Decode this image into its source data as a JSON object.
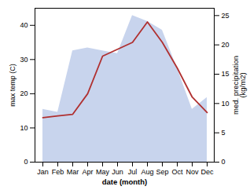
{
  "chart_data": {
    "type": "line",
    "categories": [
      "Jan",
      "Feb",
      "Mar",
      "Apr",
      "May",
      "Jun",
      "Jul",
      "Aug",
      "Sep",
      "Oct",
      "Nov",
      "Dec"
    ],
    "xlabel": "date (month)",
    "ylabel": "max temp (C)",
    "y2label": "med. precipitation\n(kg/m2)",
    "ylim": [
      0,
      45
    ],
    "yticks": [
      0,
      10,
      20,
      30,
      40
    ],
    "y2lim": [
      0,
      26.25
    ],
    "y2ticks": [
      0,
      5,
      10,
      15,
      20,
      25
    ],
    "series": [
      {
        "type": "area",
        "axis": "y2",
        "color": "#c8d4ed",
        "values": [
          9.0,
          8.5,
          19.0,
          19.5,
          19.0,
          18.5,
          25.0,
          24.0,
          22.5,
          16.0,
          9.0,
          11.0
        ]
      },
      {
        "type": "line",
        "color": "#b03030",
        "values": [
          13.0,
          13.5,
          14.0,
          20.0,
          31.0,
          33.0,
          35.0,
          41.0,
          35.0,
          27.5,
          19.0,
          14.5
        ]
      }
    ]
  }
}
